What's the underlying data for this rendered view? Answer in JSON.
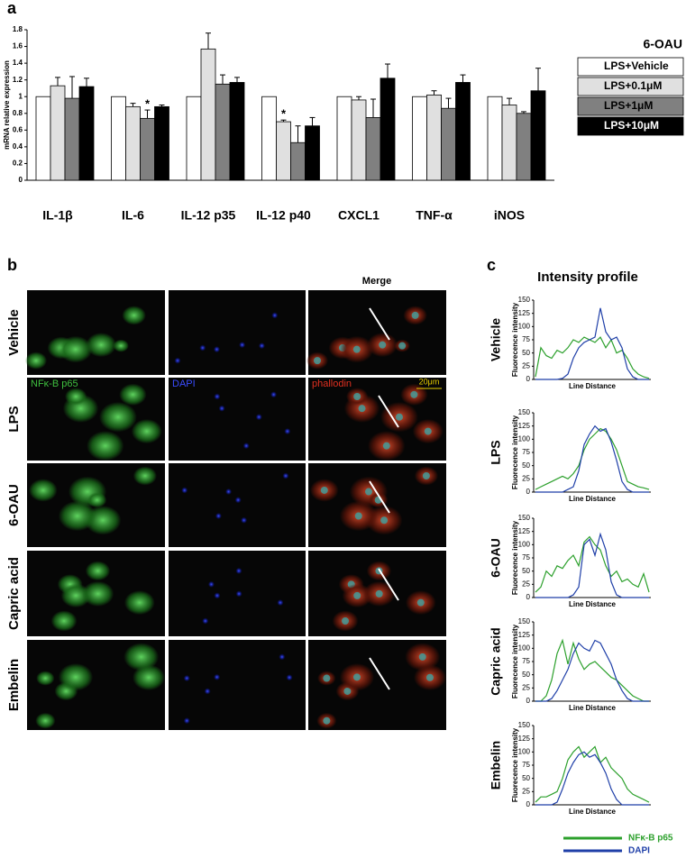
{
  "figure": {
    "panel_labels": [
      "a",
      "b",
      "c"
    ],
    "profile_title": "Intensity profile",
    "micrograph": {
      "rows": [
        "Vehicle",
        "LPS",
        "6-OAU",
        "Capric acid",
        "Embelin"
      ],
      "column_header": "Merge",
      "channel_labels": [
        "NFκ-B p65",
        "DAPI",
        "phallodin"
      ],
      "scale_bar": "20μm"
    }
  },
  "chart_data": [
    {
      "type": "bar",
      "ylabel": "mRNA relative expression",
      "legend_title": "6-OAU",
      "categories": [
        "IL-1β",
        "IL-6",
        "IL-12 p35",
        "IL-12 p40",
        "CXCL1",
        "TNF-α",
        "iNOS"
      ],
      "ylim": [
        0,
        1.8
      ],
      "yticks": [
        0,
        0.2,
        0.4,
        0.6,
        0.8,
        1,
        1.2,
        1.4,
        1.6,
        1.8
      ],
      "series": [
        {
          "name": "LPS+Vehicle",
          "color": "#ffffff",
          "values": [
            1,
            1,
            1,
            1,
            1,
            1,
            1
          ]
        },
        {
          "name": "LPS+0.1μM",
          "color": "#e0e0e0",
          "values": [
            1.13,
            0.88,
            1.57,
            0.7,
            0.96,
            1.02,
            0.9
          ],
          "errors": [
            0.1,
            0.04,
            0.19,
            0.02,
            0.04,
            0.05,
            0.08
          ],
          "significance": [
            null,
            null,
            null,
            "*",
            null,
            null,
            null
          ]
        },
        {
          "name": "LPS+1μM",
          "color": "#808080",
          "values": [
            0.98,
            0.74,
            1.15,
            0.45,
            0.75,
            0.86,
            0.8
          ],
          "errors": [
            0.26,
            0.1,
            0.11,
            0.2,
            0.22,
            0.12,
            0.02
          ],
          "significance": [
            null,
            "*",
            null,
            null,
            null,
            null,
            null
          ]
        },
        {
          "name": "LPS+10μM",
          "color": "#000000",
          "values": [
            1.12,
            0.88,
            1.17,
            0.65,
            1.22,
            1.17,
            1.07
          ],
          "errors": [
            0.1,
            0.02,
            0.06,
            0.1,
            0.17,
            0.09,
            0.27
          ]
        }
      ]
    },
    {
      "type": "line",
      "title": "Vehicle",
      "ylabel": "Fluorecence intensity",
      "xlabel": "Line Distance",
      "ylim": [
        0,
        150
      ],
      "yticks": [
        0,
        25,
        50,
        75,
        100,
        125,
        150
      ],
      "series": [
        {
          "color": "#2ca02c",
          "values": [
            5,
            60,
            45,
            40,
            55,
            50,
            60,
            75,
            70,
            80,
            75,
            70,
            80,
            60,
            75,
            50,
            55,
            40,
            20,
            10,
            5,
            2
          ]
        },
        {
          "color": "#1f3fa8",
          "values": [
            0,
            0,
            0,
            0,
            0,
            2,
            10,
            40,
            60,
            70,
            75,
            80,
            135,
            90,
            75,
            80,
            60,
            20,
            5,
            0,
            0,
            0
          ]
        }
      ]
    },
    {
      "type": "line",
      "title": "LPS",
      "ylabel": "Fluorecence intensity",
      "xlabel": "Line Distance",
      "ylim": [
        0,
        150
      ],
      "yticks": [
        0,
        25,
        50,
        75,
        100,
        125,
        150
      ],
      "series": [
        {
          "color": "#2ca02c",
          "values": [
            5,
            10,
            15,
            20,
            25,
            30,
            25,
            35,
            50,
            80,
            100,
            110,
            120,
            115,
            100,
            80,
            50,
            20,
            15,
            10,
            8,
            5
          ]
        },
        {
          "color": "#1f3fa8",
          "values": [
            0,
            0,
            0,
            0,
            0,
            0,
            5,
            10,
            40,
            90,
            110,
            125,
            115,
            120,
            95,
            60,
            20,
            5,
            0,
            0,
            0,
            0
          ]
        }
      ]
    },
    {
      "type": "line",
      "title": "6-OAU",
      "ylabel": "Fluorecence intensity",
      "xlabel": "Line Distance",
      "ylim": [
        0,
        150
      ],
      "yticks": [
        0,
        25,
        50,
        75,
        100,
        125,
        150
      ],
      "series": [
        {
          "color": "#2ca02c",
          "values": [
            10,
            20,
            50,
            40,
            60,
            55,
            70,
            80,
            60,
            105,
            115,
            100,
            90,
            60,
            40,
            50,
            30,
            35,
            25,
            20,
            45,
            10
          ]
        },
        {
          "color": "#1f3fa8",
          "values": [
            0,
            0,
            0,
            0,
            0,
            0,
            0,
            5,
            20,
            100,
            110,
            80,
            120,
            90,
            30,
            5,
            0,
            0,
            0,
            0,
            0,
            0
          ]
        }
      ]
    },
    {
      "type": "line",
      "title": "Capric acid",
      "ylabel": "Fluorecence intensity",
      "xlabel": "Line Distance",
      "ylim": [
        0,
        150
      ],
      "yticks": [
        0,
        25,
        50,
        75,
        100,
        125,
        150
      ],
      "series": [
        {
          "color": "#2ca02c",
          "values": [
            0,
            0,
            10,
            40,
            90,
            115,
            70,
            110,
            80,
            60,
            70,
            75,
            65,
            55,
            45,
            40,
            30,
            20,
            10,
            5,
            0,
            0
          ]
        },
        {
          "color": "#1f3fa8",
          "values": [
            0,
            0,
            0,
            5,
            20,
            40,
            60,
            90,
            110,
            100,
            95,
            115,
            110,
            90,
            70,
            40,
            20,
            5,
            0,
            0,
            0,
            0
          ]
        }
      ]
    },
    {
      "type": "line",
      "title": "Embelin",
      "ylabel": "Fluorecence intensity",
      "xlabel": "Line Distance",
      "ylim": [
        0,
        150
      ],
      "yticks": [
        0,
        25,
        50,
        75,
        100,
        125,
        150
      ],
      "series": [
        {
          "name": "NFκ-B p65",
          "color": "#2ca02c",
          "values": [
            5,
            15,
            15,
            20,
            25,
            50,
            85,
            100,
            110,
            90,
            100,
            110,
            80,
            90,
            70,
            60,
            50,
            30,
            20,
            15,
            10,
            5
          ]
        },
        {
          "name": "DAPI",
          "color": "#1f3fa8",
          "values": [
            0,
            0,
            0,
            0,
            5,
            30,
            60,
            80,
            95,
            100,
            90,
            95,
            80,
            60,
            30,
            10,
            0,
            0,
            0,
            0,
            0,
            0
          ]
        }
      ]
    }
  ]
}
